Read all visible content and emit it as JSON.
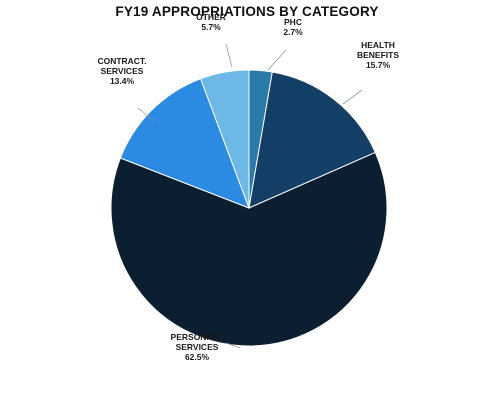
{
  "chart_data": {
    "type": "pie",
    "title": "FY19 APPROPRIATIONS BY CATEGORY",
    "start_angle_deg": 0,
    "direction": "clockwise",
    "slices": [
      {
        "label_lines": [
          "PHC"
        ],
        "value_label": "2.7%",
        "value": 2.7,
        "color": "#2a7aaa"
      },
      {
        "label_lines": [
          "HEALTH",
          "BENEFITS"
        ],
        "value_label": "15.7%",
        "value": 15.7,
        "color": "#133f66"
      },
      {
        "label_lines": [
          "PERSONNEL",
          "SERVICES"
        ],
        "value_label": "62.5%",
        "value": 62.5,
        "color": "#0b1f31"
      },
      {
        "label_lines": [
          "CONTRACT.",
          "SERVICES"
        ],
        "value_label": "13.4%",
        "value": 13.4,
        "color": "#2b8be3"
      },
      {
        "label_lines": [
          "OTHER"
        ],
        "value_label": "5.7%",
        "value": 5.7,
        "color": "#6cb8e6"
      }
    ]
  }
}
